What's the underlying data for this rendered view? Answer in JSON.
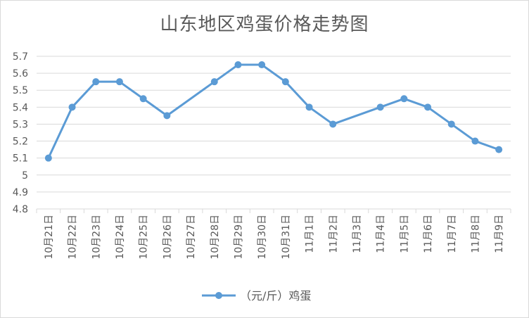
{
  "chart_data": {
    "type": "line",
    "title": "山东地区鸡蛋价格走势图",
    "xlabel": "",
    "ylabel": "",
    "categories": [
      "10月21日",
      "10月22日",
      "10月23日",
      "10月24日",
      "10月25日",
      "10月26日",
      "10月27日",
      "10月28日",
      "10月29日",
      "10月30日",
      "10月31日",
      "11月1日",
      "11月2日",
      "11月3日",
      "11月4日",
      "11月5日",
      "11月6日",
      "11月7日",
      "11月8日",
      "11月9日"
    ],
    "series": [
      {
        "name": "（元/斤）鸡蛋",
        "color": "#5b9bd5",
        "values": [
          5.1,
          5.4,
          5.55,
          5.55,
          5.45,
          5.35,
          null,
          5.55,
          5.65,
          5.65,
          5.55,
          5.4,
          5.3,
          null,
          5.4,
          5.45,
          5.4,
          5.3,
          5.2,
          5.15
        ]
      }
    ],
    "ylim": [
      4.8,
      5.7
    ],
    "yticks": [
      "4.8",
      "4.9",
      "5",
      "5.1",
      "5.2",
      "5.3",
      "5.4",
      "5.5",
      "5.6",
      "5.7"
    ],
    "grid": true,
    "legend_position": "bottom"
  }
}
